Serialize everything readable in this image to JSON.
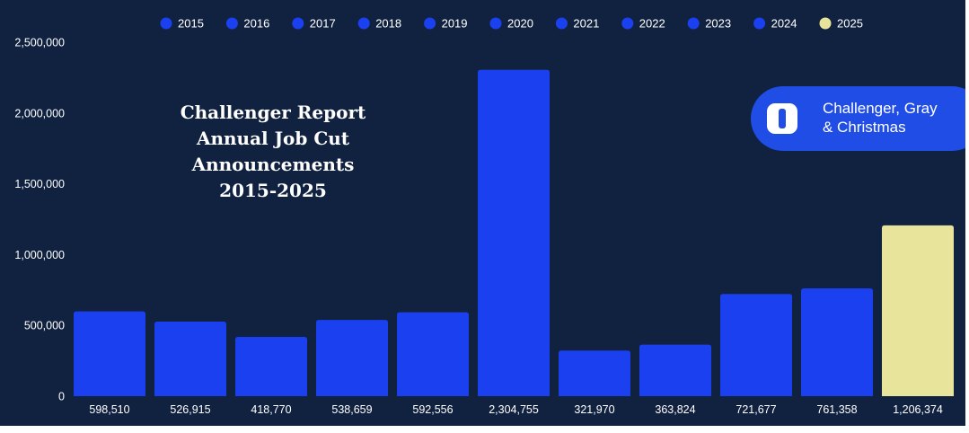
{
  "logo": {
    "name_line1": "Challenger, Gray",
    "name_line2": "& Christmas",
    "mark_icon": "challenger-logo-mark-icon",
    "badge_color": "#1f4de6"
  },
  "colors": {
    "background": "#112240",
    "bar": "#1a40f0",
    "highlight_bar": "#e8e49c",
    "text": "#ffffff"
  },
  "chart_data": {
    "type": "bar",
    "title": [
      "Challenger Report",
      "Annual Job Cut",
      "Announcements",
      "2015-2025"
    ],
    "categories": [
      "2015",
      "2016",
      "2017",
      "2018",
      "2019",
      "2020",
      "2021",
      "2022",
      "2023",
      "2024",
      "2025"
    ],
    "values": [
      598510,
      526915,
      418770,
      538659,
      592556,
      2304755,
      321970,
      363824,
      721677,
      761358,
      1206374
    ],
    "value_labels": [
      "598,510",
      "526,915",
      "418,770",
      "538,659",
      "592,556",
      "2,304,755",
      "321,970",
      "363,824",
      "721,677",
      "761,358",
      "1,206,374"
    ],
    "legend": [
      "2015",
      "2016",
      "2017",
      "2018",
      "2019",
      "2020",
      "2021",
      "2022",
      "2023",
      "2024",
      "2025"
    ],
    "legend_position": "top",
    "highlight_category": "2025",
    "ylim": [
      0,
      2500000
    ],
    "yticks": [
      0,
      500000,
      1000000,
      1500000,
      2000000,
      2500000
    ],
    "ytick_labels": [
      "0",
      "500,000",
      "1,000,000",
      "1,500,000",
      "2,000,000",
      "2,500,000"
    ],
    "xlabel": "",
    "ylabel": "",
    "grid": false
  }
}
